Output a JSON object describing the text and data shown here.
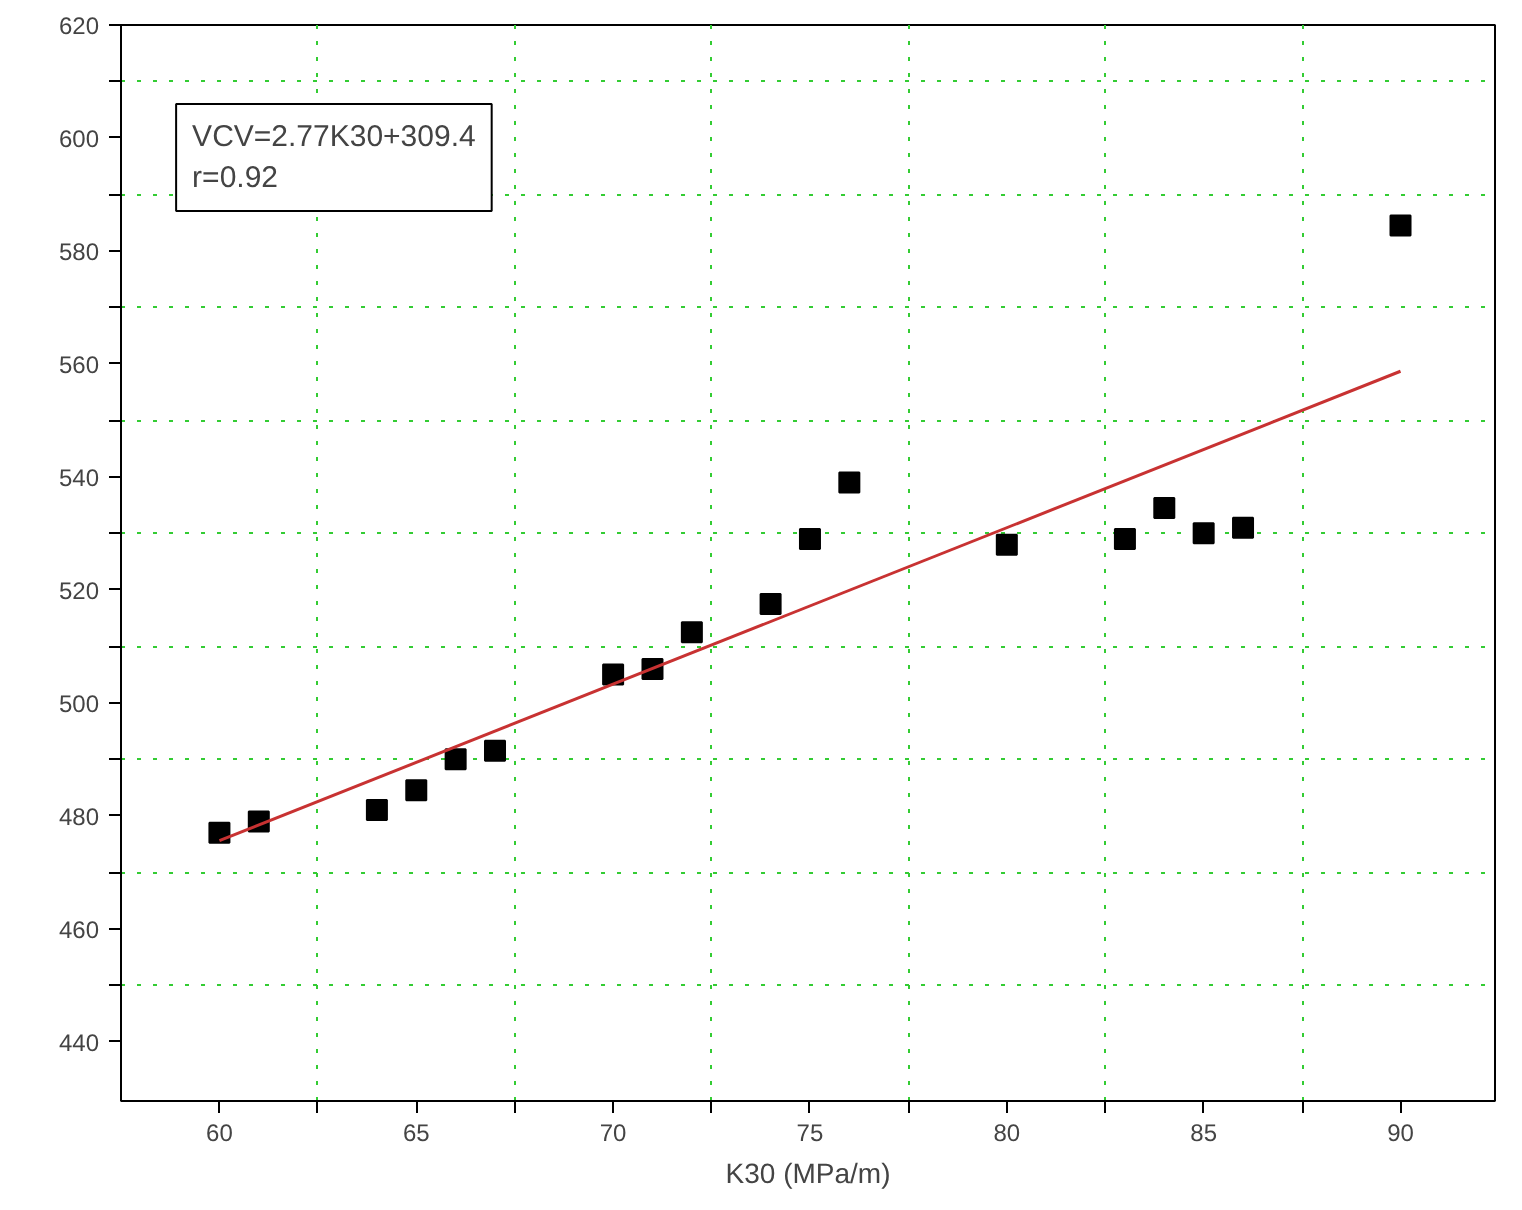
{
  "chart_data": {
    "type": "scatter",
    "xlabel": "K30 (MPa/m)",
    "annotations": [
      "VCV=2.77K30+309.4",
      "r=0.92"
    ],
    "series": [
      {
        "color": "#000000",
        "marker": "square",
        "x": [
          60,
          61,
          64,
          65,
          66,
          67,
          70,
          71,
          72,
          74,
          75,
          76,
          80,
          83,
          84,
          85,
          86,
          90
        ],
        "values": [
          477,
          479,
          481,
          484.5,
          490,
          491.5,
          505,
          506,
          512.5,
          517.5,
          529,
          539,
          528,
          529,
          534.5,
          530,
          531,
          584.5
        ]
      },
      {
        "type": "line",
        "color": "#c83232",
        "line_style": "solid",
        "x": [
          60,
          90
        ],
        "values": [
          475.6,
          558.7
        ]
      }
    ],
    "xlim": [
      57.5,
      92.4
    ],
    "ylim": [
      429.5,
      620
    ],
    "xticks": [
      60,
      {
        "value": 62.5,
        "label": null
      },
      65,
      {
        "value": 67.5,
        "label": null
      },
      70,
      {
        "value": 72.5,
        "label": null
      },
      75,
      {
        "value": 77.5,
        "label": null
      },
      80,
      {
        "value": 82.5,
        "label": null
      },
      85,
      {
        "value": 87.5,
        "label": null
      },
      90
    ],
    "yticks": [
      440,
      {
        "value": 450,
        "label": null
      },
      460,
      {
        "value": 470,
        "label": null
      },
      480,
      {
        "value": 490,
        "label": null
      },
      500,
      {
        "value": 510,
        "label": null
      },
      520,
      {
        "value": 530,
        "label": null
      },
      540,
      {
        "value": 550,
        "label": null
      },
      560,
      {
        "value": 570,
        "label": null
      },
      580,
      {
        "value": 590,
        "label": null
      },
      600,
      {
        "value": 610,
        "label": null
      },
      620
    ],
    "grid": true
  }
}
